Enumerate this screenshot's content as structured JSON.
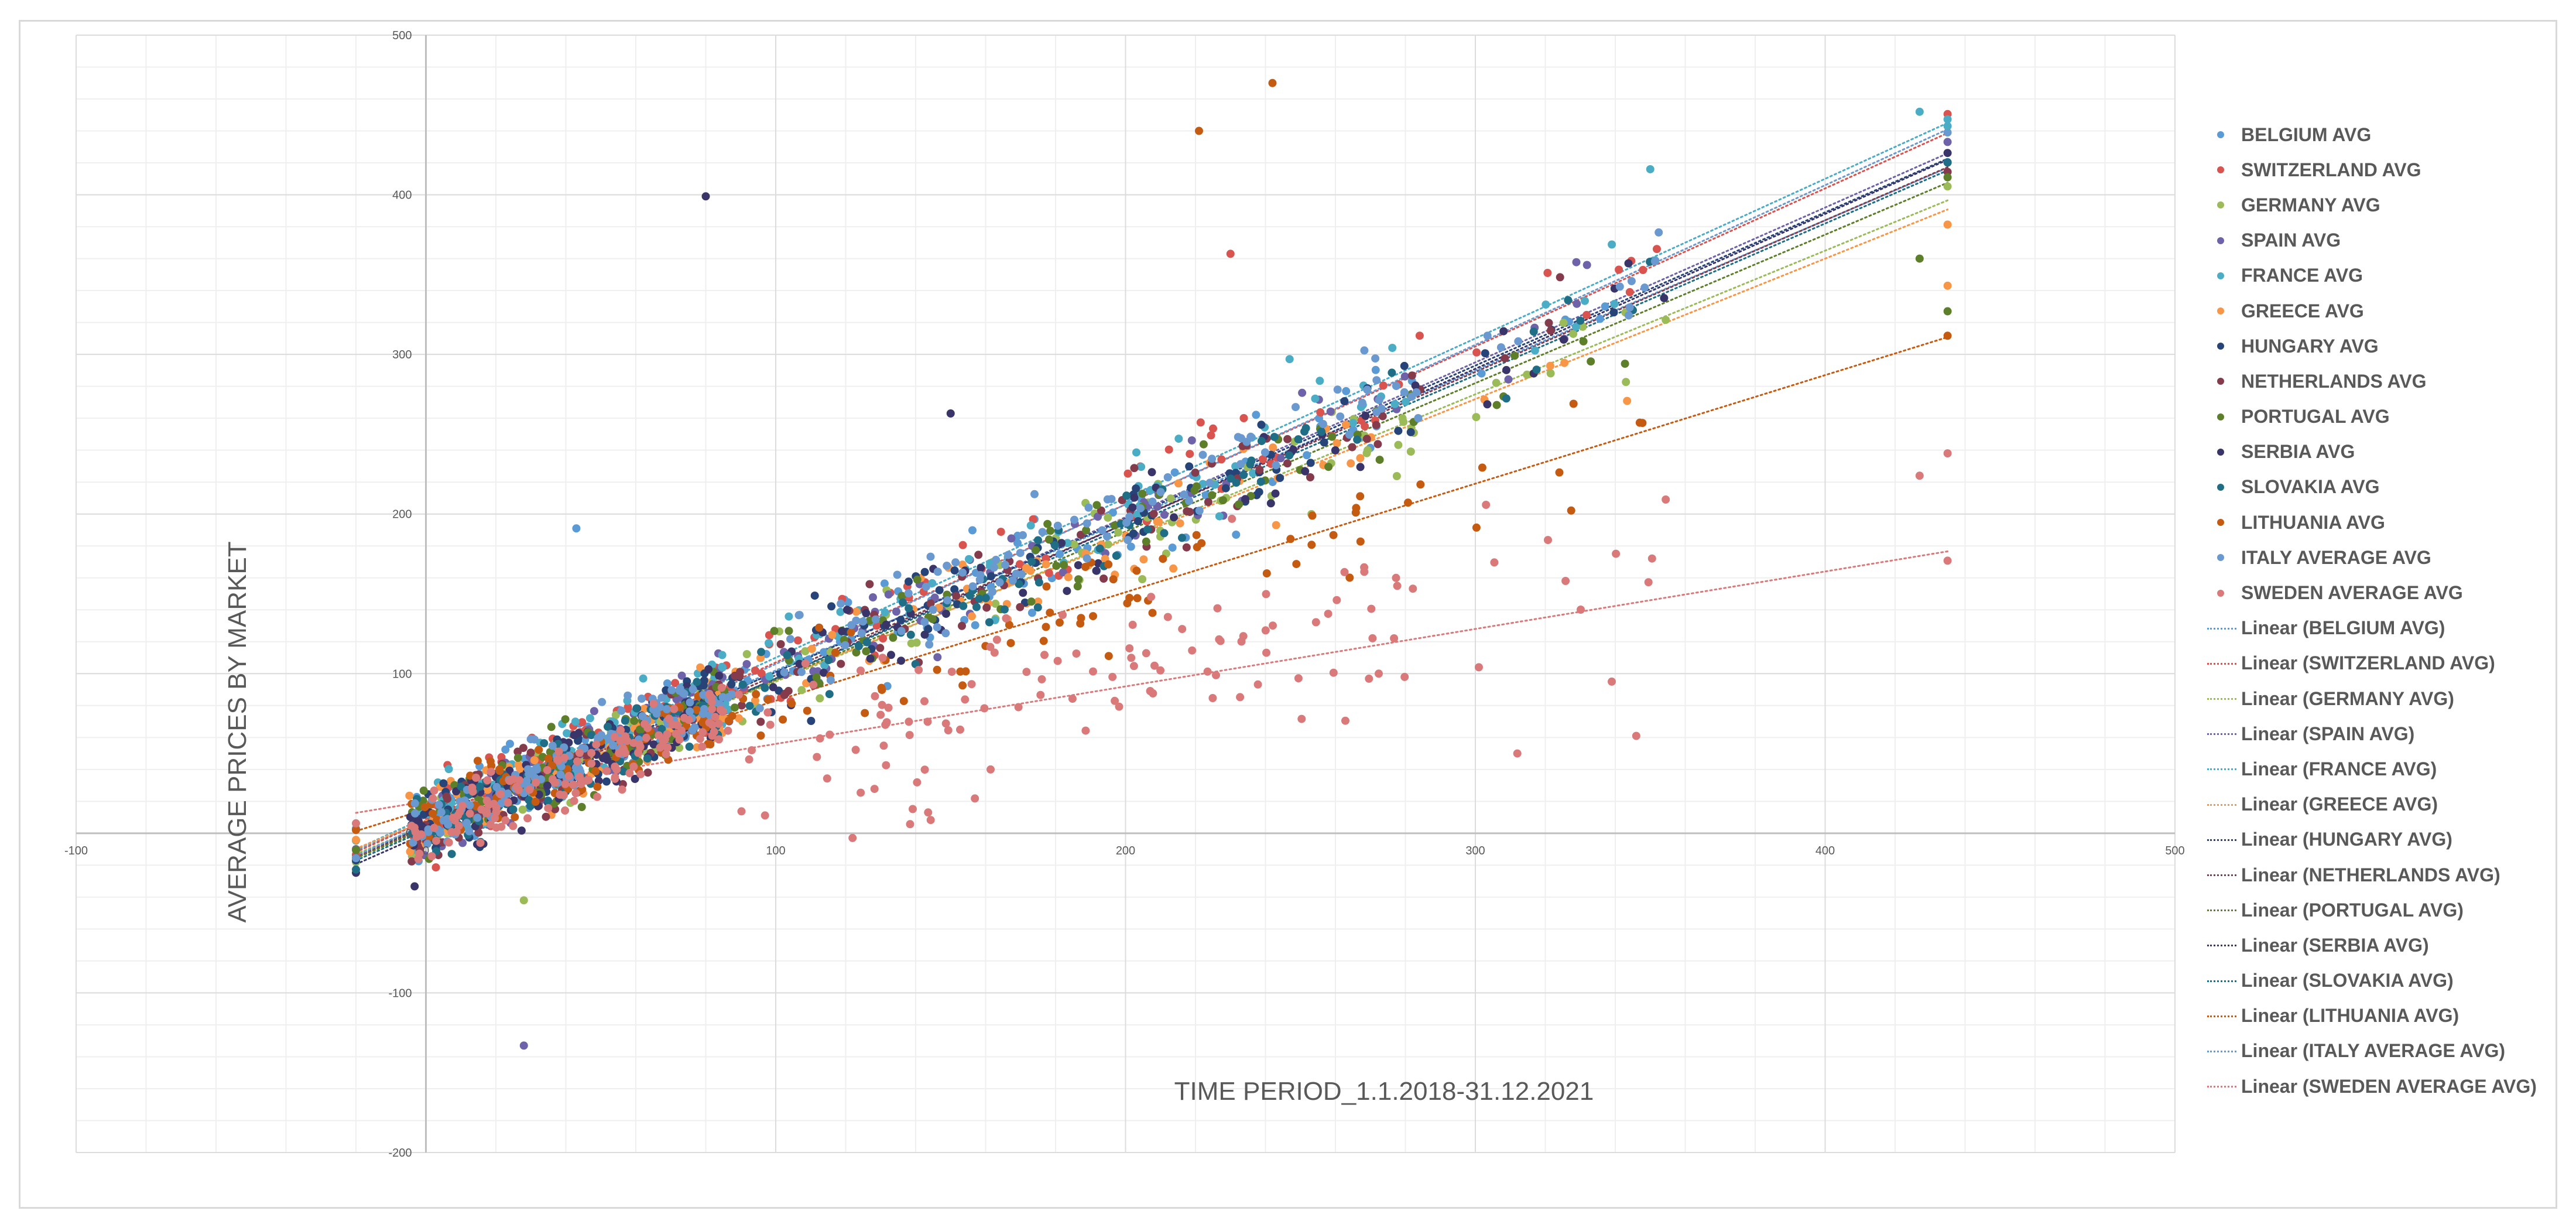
{
  "chart_data": {
    "type": "scatter",
    "title": "",
    "xlabel": "TIME PERIOD_1.1.2018-31.12.2021",
    "ylabel": "AVERAGE PRICES BY MARKET",
    "xlim": [
      -100,
      500
    ],
    "ylim": [
      -200,
      500
    ],
    "x_ticks": [
      -100,
      0,
      100,
      200,
      300,
      400,
      500
    ],
    "y_ticks": [
      -200,
      -100,
      0,
      100,
      200,
      300,
      400,
      500
    ],
    "grid": true,
    "legend_position": "right",
    "series": [
      {
        "name": "BELGIUM AVG",
        "color": "#5B9BD5",
        "trend": {
          "name": "Linear (BELGIUM AVG)",
          "slope": 0.94,
          "intercept": 8
        }
      },
      {
        "name": "SWITZERLAND AVG",
        "color": "#D9534F",
        "trend": {
          "name": "Linear (SWITZERLAND AVG)",
          "slope": 0.99,
          "intercept": 8
        }
      },
      {
        "name": "GERMANY AVG",
        "color": "#9BBB59",
        "trend": {
          "name": "Linear (GERMANY AVG)",
          "slope": 0.9,
          "intercept": 5
        }
      },
      {
        "name": "SPAIN AVG",
        "color": "#6E62A8",
        "trend": {
          "name": "Linear (SPAIN AVG)",
          "slope": 0.97,
          "intercept": 4
        }
      },
      {
        "name": "FRANCE AVG",
        "color": "#4BACC6",
        "trend": {
          "name": "Linear (FRANCE AVG)",
          "slope": 1.0,
          "intercept": 10
        }
      },
      {
        "name": "GREECE AVG",
        "color": "#F79646",
        "trend": {
          "name": "Linear (GREECE AVG)",
          "slope": 0.88,
          "intercept": 8
        }
      },
      {
        "name": "HUNGARY AVG",
        "color": "#264478",
        "trend": {
          "name": "Linear (HUNGARY AVG)",
          "slope": 0.96,
          "intercept": 5
        }
      },
      {
        "name": "NETHERLANDS AVG",
        "color": "#843C4C",
        "trend": {
          "name": "Linear (NETHERLANDS AVG)",
          "slope": 0.95,
          "intercept": 4
        }
      },
      {
        "name": "PORTUGAL AVG",
        "color": "#5E7F2A",
        "trend": {
          "name": "Linear (PORTUGAL AVG)",
          "slope": 0.93,
          "intercept": 3
        }
      },
      {
        "name": "SERBIA AVG",
        "color": "#3A3569",
        "trend": {
          "name": "Linear (SERBIA AVG)",
          "slope": 0.97,
          "intercept": 0
        }
      },
      {
        "name": "SLOVAKIA AVG",
        "color": "#1F6E85",
        "trend": {
          "name": "Linear (SLOVAKIA AVG)",
          "slope": 0.95,
          "intercept": 2
        }
      },
      {
        "name": "LITHUANIA AVG",
        "color": "#C55A11",
        "trend": {
          "name": "Linear (LITHUANIA AVG)",
          "slope": 0.68,
          "intercept": 15
        }
      },
      {
        "name": "ITALY AVERAGE AVG",
        "color": "#6A99D0",
        "trend": {
          "name": "Linear (ITALY AVERAGE AVG)",
          "slope": 1.0,
          "intercept": 6
        }
      },
      {
        "name": "SWEDEN AVERAGE AVG",
        "color": "#D9797A",
        "trend": {
          "name": "Linear (SWEDEN AVERAGE AVG)",
          "slope": 0.36,
          "intercept": 20
        }
      }
    ],
    "outliers": [
      {
        "x": 80,
        "y": 399,
        "series": "SERBIA AVG"
      },
      {
        "x": 28,
        "y": -133,
        "series": "SPAIN AVG"
      },
      {
        "x": 221,
        "y": 440,
        "series": "LITHUANIA AVG"
      },
      {
        "x": 242,
        "y": 470,
        "series": "LITHUANIA AVG"
      },
      {
        "x": 230,
        "y": 363,
        "series": "SWITZERLAND AVG"
      },
      {
        "x": 28,
        "y": -42,
        "series": "GERMANY AVG"
      },
      {
        "x": 150,
        "y": 263,
        "series": "SERBIA AVG"
      },
      {
        "x": 43,
        "y": 191,
        "series": "BELGIUM AVG"
      },
      {
        "x": 435,
        "y": 238,
        "series": "SWEDEN AVERAGE AVG"
      },
      {
        "x": 427,
        "y": 224,
        "series": "SWEDEN AVERAGE AVG"
      },
      {
        "x": 312,
        "y": 50,
        "series": "SWEDEN AVERAGE AVG"
      },
      {
        "x": 346,
        "y": 61,
        "series": "SWEDEN AVERAGE AVG"
      },
      {
        "x": 339,
        "y": 95,
        "series": "SWEDEN AVERAGE AVG"
      },
      {
        "x": 301,
        "y": 104,
        "series": "SWEDEN AVERAGE AVG"
      },
      {
        "x": 435,
        "y": 327,
        "series": "PORTUGAL AVG"
      },
      {
        "x": 435,
        "y": 343,
        "series": "GREECE AVG"
      },
      {
        "x": 427,
        "y": 360,
        "series": "PORTUGAL AVG"
      },
      {
        "x": 427,
        "y": 452,
        "series": "FRANCE AVG"
      },
      {
        "x": 435,
        "y": 443,
        "series": "FRANCE AVG"
      },
      {
        "x": 350,
        "y": 416,
        "series": "FRANCE AVG"
      }
    ]
  }
}
